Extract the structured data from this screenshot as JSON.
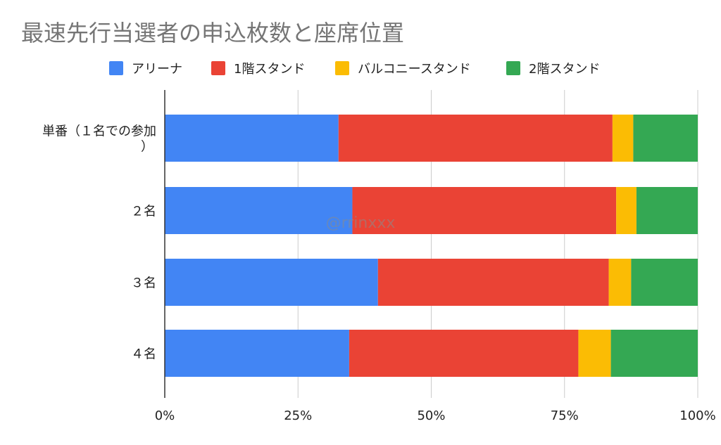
{
  "chart_data": {
    "type": "bar",
    "orientation": "horizontal",
    "stacked": "percent",
    "title": "最速先行当選者の申込枚数と座席位置",
    "watermark": "@rrinxxx",
    "categories": [
      "単番（１名での参加）",
      "２名",
      "３名",
      "４名"
    ],
    "series": [
      {
        "name": "アリーナ",
        "color": "#4285f4",
        "values": [
          32.6,
          35.2,
          40.0,
          34.6
        ]
      },
      {
        "name": "1階スタンド",
        "color": "#ea4335",
        "values": [
          51.4,
          49.5,
          43.3,
          43.0
        ]
      },
      {
        "name": "バルコニースタンド",
        "color": "#fbbc04",
        "values": [
          3.9,
          3.8,
          4.2,
          6.1
        ]
      },
      {
        "name": "2階スタンド",
        "color": "#34a853",
        "values": [
          12.1,
          11.5,
          12.5,
          16.3
        ]
      }
    ],
    "x_ticks": [
      "0%",
      "25%",
      "50%",
      "75%",
      "100%"
    ],
    "xlim": [
      0,
      100
    ],
    "grid": true,
    "legend_position": "top"
  }
}
